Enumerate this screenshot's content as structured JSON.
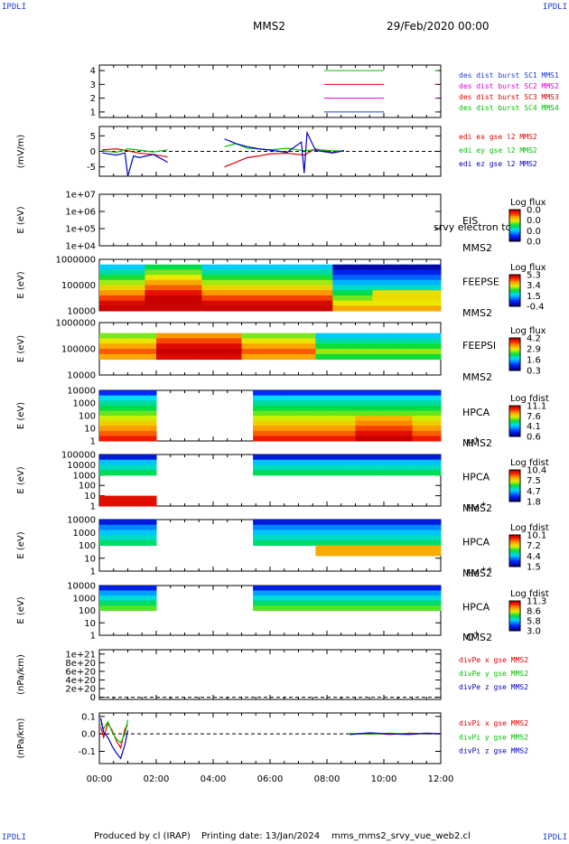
{
  "corners": {
    "tl": "IPDLI",
    "tr": "IPDLI",
    "bl": "IPDLI",
    "br": "IPDLI"
  },
  "header": {
    "mission": "MMS2",
    "date": "29/Feb/2020 00:00"
  },
  "footer": {
    "produced": "Produced by cl (IRAP)",
    "printing": "Printing date: 13/Jan/2024",
    "file": "mms_mms2_srvy_vue_web2.cl"
  },
  "colors": {
    "red": "#e00000",
    "green": "#00c000",
    "blue": "#0000c0",
    "magenta": "#e000e0",
    "black": "#000000"
  },
  "chart_data": [
    {
      "type": "line",
      "id": "desdist",
      "yticks": [
        "1",
        "2",
        "3",
        "4"
      ],
      "ylim": [
        0.6,
        4.4
      ],
      "series": [
        {
          "name": "des dist burst SC1 MMS1",
          "color": "#1e3ad8",
          "y": 1,
          "x": [
            [
              7.9,
              10.0
            ]
          ],
          "mark": 11.8
        },
        {
          "name": "des dist burst SC2 MMS2",
          "color": "#e000e0",
          "y": 2,
          "x": [
            [
              7.9,
              10.0
            ]
          ],
          "mark": 11.8
        },
        {
          "name": "des dist burst SC3 MMS3",
          "color": "#e00000",
          "y": 3,
          "x": [
            [
              7.9,
              10.0
            ]
          ],
          "mark": 11.8
        },
        {
          "name": "des dist burst SC4 MMS4",
          "color": "#00c000",
          "y": 4,
          "x": [
            [
              7.9,
              10.0
            ]
          ],
          "mark": 11.8
        }
      ]
    },
    {
      "type": "line",
      "id": "edi",
      "ylabel": "(mV/m)",
      "yticks": [
        "-5",
        "0",
        "5"
      ],
      "ylim": [
        -8,
        8
      ],
      "zero": true,
      "series": [
        {
          "name": "edi ex gse l2 MMS2",
          "color": "#e00000",
          "x": [
            0.1,
            0.6,
            1.0,
            1.4,
            1.9,
            2.4,
            4.4,
            4.8,
            5.2,
            5.6,
            6.0,
            6.6,
            7.2,
            7.6,
            8.2,
            8.6
          ],
          "y": [
            0.5,
            0.8,
            0.2,
            -0.6,
            -1.0,
            -1.8,
            -5,
            -3.5,
            -2,
            -1.5,
            -0.8,
            -0.6,
            -1.2,
            0.8,
            -0.4,
            0.3
          ]
        },
        {
          "name": "edi ey gse l2 MMS2",
          "color": "#00c000",
          "x": [
            0.1,
            0.6,
            1.0,
            1.4,
            1.9,
            2.4,
            4.4,
            4.8,
            5.2,
            5.6,
            6.0,
            6.6,
            7.2,
            7.6,
            8.2,
            8.6
          ],
          "y": [
            0.2,
            -0.3,
            0.8,
            0.4,
            -0.2,
            0.5,
            1.5,
            2.5,
            1.0,
            0.8,
            0.5,
            1.0,
            0.2,
            0.6,
            0.2,
            0.1
          ]
        },
        {
          "name": "edi ez gse l2 MMS2",
          "color": "#0000c0",
          "x": [
            0.1,
            0.6,
            0.9,
            1.0,
            1.2,
            1.4,
            1.9,
            2.4,
            4.4,
            4.8,
            5.2,
            5.6,
            6.0,
            6.6,
            7.1,
            7.2,
            7.3,
            7.6,
            8.2,
            8.6
          ],
          "y": [
            -0.5,
            -1.2,
            -0.5,
            -8,
            -1.5,
            -2.0,
            -1.0,
            -3.5,
            4,
            2.5,
            1.5,
            0.8,
            0.4,
            -0.3,
            3,
            -7,
            6,
            0.3,
            -0.5,
            0.2
          ]
        }
      ]
    },
    {
      "type": "heatmap",
      "id": "eis",
      "ylabel": "E (eV)",
      "yticks": [
        "1e+04",
        "1e+05",
        "1e+06",
        "1e+07"
      ],
      "label": "EIS",
      "sub": "MMS2",
      "overtext": "srvy electron to",
      "cbtitle": "Log flux",
      "cbticks": [
        "0.0",
        "0.0",
        "0.0",
        "0.0"
      ],
      "cbscale": "rainbow"
    },
    {
      "type": "heatmap",
      "id": "feepse",
      "ylabel": "E (eV)",
      "yticks": [
        "10000",
        "100000",
        "1000000"
      ],
      "label": "FEEPSE",
      "sub": "MMS2",
      "cbtitle": "Log flux",
      "cbticks": [
        "5.3",
        "3.4",
        "1.5",
        "-0.4"
      ],
      "cbscale": "rainbow"
    },
    {
      "type": "heatmap",
      "id": "feepsi",
      "ylabel": "E (eV)",
      "yticks": [
        "10000",
        "100000",
        "1000000"
      ],
      "label": "FEEPSI",
      "sub": "MMS2",
      "cbtitle": "Log flux",
      "cbticks": [
        "4.2",
        "2.9",
        "1.6",
        "0.3"
      ],
      "cbscale": "rainbow"
    },
    {
      "type": "heatmap",
      "id": "hpca_h",
      "ylabel": "E (eV)",
      "yticks": [
        "1",
        "10",
        "100",
        "1000",
        "10000"
      ],
      "label": "HPCA",
      "sub": "MMS2",
      "ion": "H",
      "charge": "+",
      "cbtitle": "Log fdist",
      "cbticks": [
        "11.1",
        "7.6",
        "4.1",
        "0.6"
      ],
      "cbscale": "rainbow"
    },
    {
      "type": "heatmap",
      "id": "hpca_he1",
      "ylabel": "E (eV)",
      "yticks": [
        "1",
        "10",
        "100",
        "1000",
        "10000",
        "100000"
      ],
      "label": "HPCA",
      "sub": "MMS2",
      "ion": "He",
      "charge": "+",
      "cbtitle": "Log fdist",
      "cbticks": [
        "10.4",
        "7.5",
        "4.7",
        "1.8"
      ],
      "cbscale": "rainbow"
    },
    {
      "type": "heatmap",
      "id": "hpca_he2",
      "ylabel": "E (eV)",
      "yticks": [
        "1",
        "10",
        "100",
        "1000",
        "10000"
      ],
      "label": "HPCA",
      "sub": "MMS2",
      "ion": "He",
      "charge": "++",
      "cbtitle": "Log fdist",
      "cbticks": [
        "10.1",
        "7.2",
        "4.4",
        "1.5"
      ],
      "cbscale": "rainbow"
    },
    {
      "type": "heatmap",
      "id": "hpca_o",
      "ylabel": "E (eV)",
      "yticks": [
        "1",
        "10",
        "100",
        "1000",
        "10000"
      ],
      "label": "HPCA",
      "sub": "MMS2",
      "ion": "O",
      "charge": "+",
      "cbtitle": "Log fdist",
      "cbticks": [
        "11.3",
        "8.6",
        "5.8",
        "3.0"
      ],
      "cbscale": "rainbow"
    },
    {
      "type": "line",
      "id": "divpe",
      "ylabel": "(nPa/km)",
      "yticks": [
        "0",
        "2e+20",
        "4e+20",
        "6e+20",
        "8e+20",
        "1e+21"
      ],
      "ylim": [
        -5e+19,
        1.1e+21
      ],
      "zero": true,
      "series": [
        {
          "name": "divPe x gse MMS2",
          "color": "#e00000",
          "x": [],
          "y": []
        },
        {
          "name": "divPe y gse MMS2",
          "color": "#00c000",
          "x": [],
          "y": []
        },
        {
          "name": "divPe z gse MMS2",
          "color": "#0000c0",
          "x": [],
          "y": []
        }
      ]
    },
    {
      "type": "line",
      "id": "divpi",
      "ylabel": "(nPa/km)",
      "yticks": [
        "-0.1",
        "0.0",
        "0.1"
      ],
      "ylim": [
        -0.17,
        0.12
      ],
      "zero": true,
      "series": [
        {
          "name": "divPi x gse MMS2",
          "color": "#e00000",
          "x": [
            0.05,
            0.15,
            0.3,
            0.45,
            0.6,
            0.75,
            0.9,
            1.0,
            8.8,
            9.5,
            10.2,
            10.9,
            11.5,
            12.0
          ],
          "y": [
            0.04,
            -0.02,
            0.06,
            0.02,
            -0.04,
            -0.08,
            0.03,
            0.05,
            0.0,
            0.005,
            -0.003,
            0.004,
            0.0,
            0.002
          ]
        },
        {
          "name": "divPi y gse MMS2",
          "color": "#00c000",
          "x": [
            0.05,
            0.15,
            0.3,
            0.45,
            0.6,
            0.75,
            0.9,
            1.0,
            8.8,
            9.5,
            10.2,
            10.9,
            11.5,
            12.0
          ],
          "y": [
            0.06,
            0.03,
            0.07,
            0.01,
            -0.03,
            -0.05,
            0.0,
            0.08,
            0.003,
            -0.002,
            0.004,
            0.0,
            0.003,
            0.0
          ]
        },
        {
          "name": "divPi z gse MMS2",
          "color": "#0000c0",
          "x": [
            0.05,
            0.15,
            0.3,
            0.45,
            0.6,
            0.75,
            0.9,
            1.0,
            8.8,
            9.5,
            10.2,
            10.9,
            11.5,
            12.0
          ],
          "y": [
            0.09,
            0.01,
            -0.02,
            -0.07,
            -0.11,
            -0.14,
            -0.06,
            0.02,
            -0.004,
            0.006,
            0.0,
            -0.003,
            0.004,
            0.0
          ]
        }
      ]
    }
  ],
  "xaxis": {
    "ticks": [
      "00:00",
      "02:00",
      "04:00",
      "06:00",
      "08:00",
      "10:00",
      "12:00"
    ],
    "xlim": [
      0,
      12
    ]
  }
}
